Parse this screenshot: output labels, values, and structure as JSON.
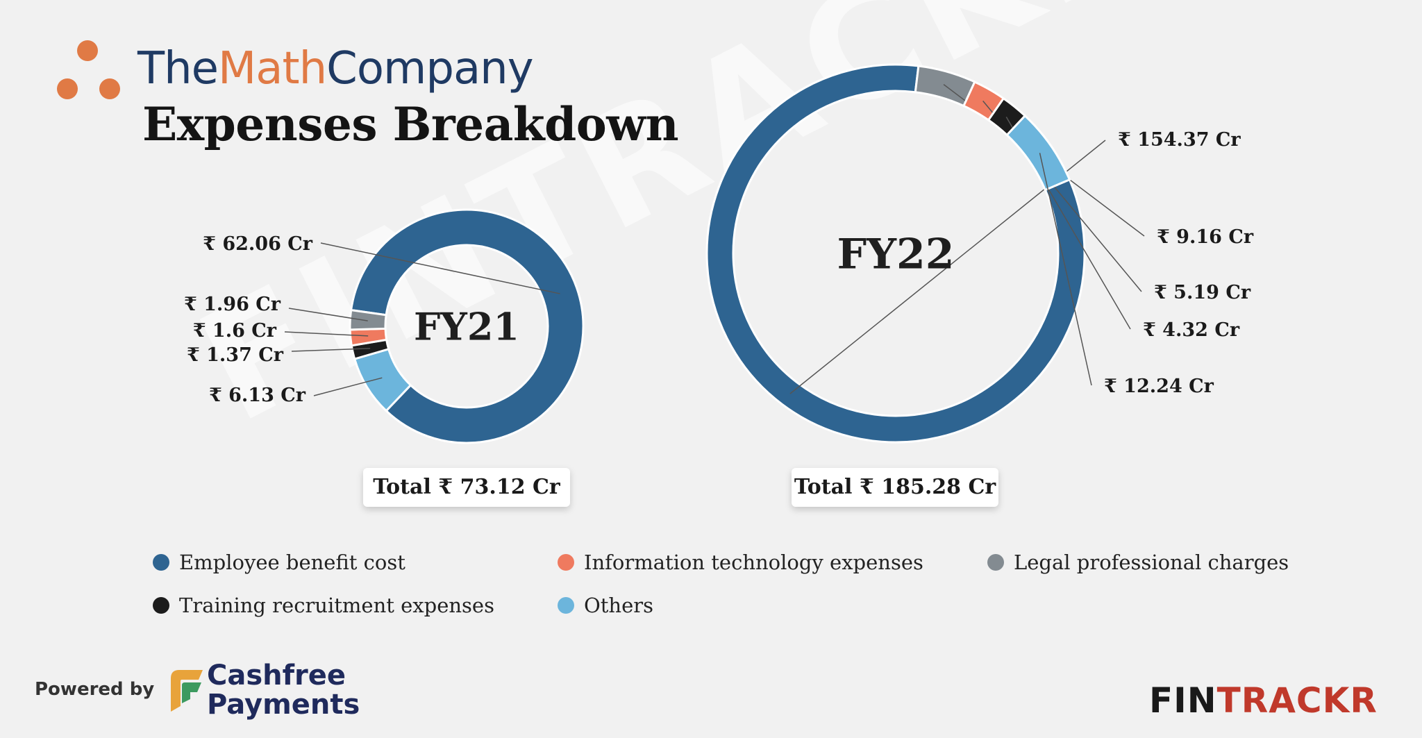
{
  "header": {
    "brand_part1": "The",
    "brand_part2": "Math",
    "brand_part3": "Company",
    "title": "Expenses Breakdown"
  },
  "colors": {
    "employee": "#2e6491",
    "it": "#ef7a5f",
    "legal": "#838b91",
    "training": "#1c1c1c",
    "others": "#6cb5dc",
    "brand_dots": "#e07a45"
  },
  "chart_data": [
    {
      "type": "pie",
      "variant": "donut",
      "center_label": "FY21",
      "total_label": "Total ₹ 73.12 Cr",
      "slices": [
        {
          "category": "Employee benefit cost",
          "value": 62.06,
          "label": "₹ 62.06 Cr"
        },
        {
          "category": "Others",
          "value": 6.13,
          "label": "₹ 6.13 Cr"
        },
        {
          "category": "Training recruitment expenses",
          "value": 1.37,
          "label": "₹ 1.37 Cr"
        },
        {
          "category": "Information technology expenses",
          "value": 1.6,
          "label": "₹ 1.6 Cr"
        },
        {
          "category": "Legal professional charges",
          "value": 1.96,
          "label": "₹ 1.96 Cr"
        }
      ]
    },
    {
      "type": "pie",
      "variant": "donut",
      "center_label": "FY22",
      "total_label": "Total ₹ 185.28 Cr",
      "slices": [
        {
          "category": "Employee benefit cost",
          "value": 154.37,
          "label": "₹ 154.37 Cr"
        },
        {
          "category": "Legal professional charges",
          "value": 9.16,
          "label": "₹ 9.16 Cr"
        },
        {
          "category": "Information technology expenses",
          "value": 5.19,
          "label": "₹ 5.19 Cr"
        },
        {
          "category": "Training recruitment expenses",
          "value": 4.32,
          "label": "₹ 4.32 Cr"
        },
        {
          "category": "Others",
          "value": 12.24,
          "label": "₹ 12.24 Cr"
        }
      ]
    }
  ],
  "legend": [
    {
      "label": "Employee benefit cost",
      "color_key": "employee"
    },
    {
      "label": "Information technology expenses",
      "color_key": "it"
    },
    {
      "label": "Legal professional charges",
      "color_key": "legal"
    },
    {
      "label": "Training recruitment expenses",
      "color_key": "training"
    },
    {
      "label": "Others",
      "color_key": "others"
    }
  ],
  "footer": {
    "powered_by": "Powered by",
    "sponsor_line1": "Cashfree",
    "sponsor_line2": "Payments",
    "publisher_part1": "FIN",
    "publisher_part2": "TRACKR"
  },
  "watermark": "FINTRACKR"
}
